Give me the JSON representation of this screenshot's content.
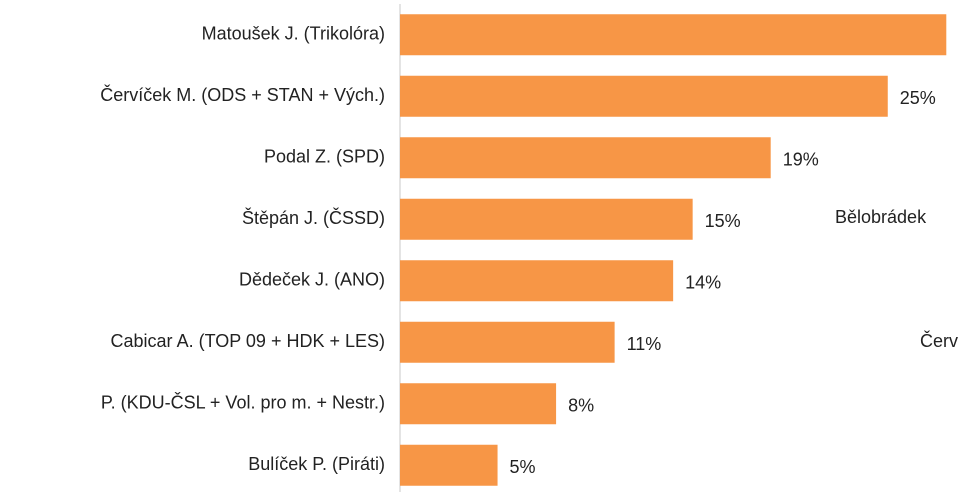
{
  "chart_data": {
    "type": "hbar",
    "categories": [
      "Matoušek J. (Trikolóra)",
      "Červíček M. (ODS + STAN + Vých.)",
      "Podal Z. (SPD)",
      "Štěpán J. (ČSSD)",
      "Dědeček J. (ANO)",
      "Cabicar A. (TOP 09 + HDK + LES)",
      "P. (KDU-ČSL + Vol. pro m. + Nestr.)",
      "Bulíček P. (Piráti)"
    ],
    "values": [
      28,
      25,
      19,
      15,
      14,
      11,
      8,
      5
    ],
    "value_labels": [
      null,
      "25%",
      "19%",
      "15%",
      "14%",
      "11%",
      "8%",
      "5%"
    ],
    "color": "#f79646",
    "xlim": [
      0,
      28.6
    ],
    "annotations": [
      "Bělobrádek",
      "Červ"
    ]
  }
}
